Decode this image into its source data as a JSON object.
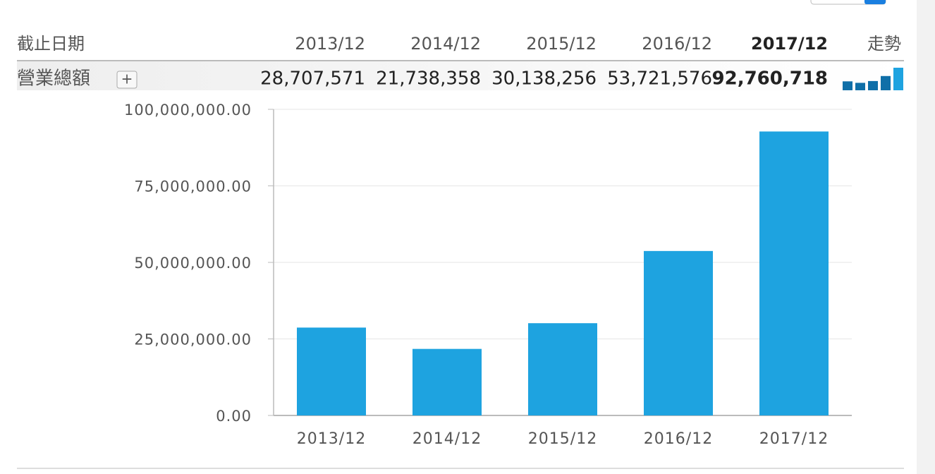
{
  "table": {
    "header": [
      "截止日期",
      "2013/12",
      "2014/12",
      "2015/12",
      "2016/12",
      "2017/12",
      "走勢"
    ],
    "rows": [
      [
        "營業總額",
        "28,707,571",
        "21,738,358",
        "30,138,256",
        "53,721,576",
        "92,760,718"
      ]
    ]
  },
  "chart_data": {
    "type": "bar",
    "categories": [
      "2013/12",
      "2014/12",
      "2015/12",
      "2016/12",
      "2017/12"
    ],
    "values": [
      28707571,
      21738358,
      30138256,
      53721576,
      92760718
    ],
    "color": "#1ea3e0",
    "ylim": [
      0,
      100000000
    ],
    "yticks": [
      {
        "value": 0,
        "label": "0.00"
      },
      {
        "value": 25000000,
        "label": "25,000,000.00"
      },
      {
        "value": 50000000,
        "label": "50,000,000.00"
      },
      {
        "value": 75000000,
        "label": "75,000,000.00"
      },
      {
        "value": 100000000,
        "label": "100,000,000.00"
      }
    ],
    "grid": true
  }
}
